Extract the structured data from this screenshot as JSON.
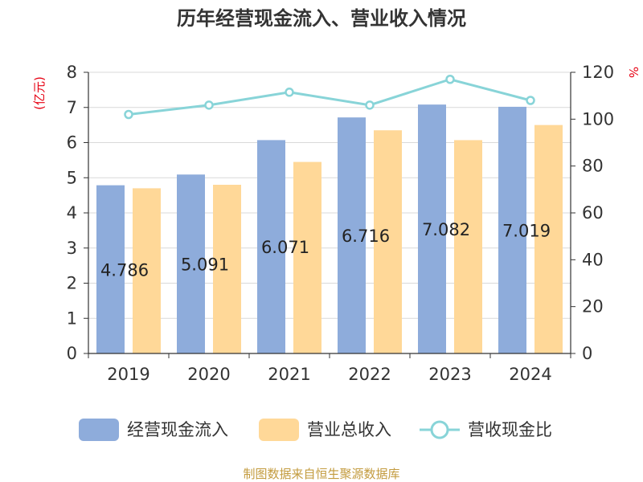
{
  "chart_data": {
    "type": "bar",
    "title": "历年经营现金流入、营业收入情况",
    "categories": [
      "2019",
      "2020",
      "2021",
      "2022",
      "2023",
      "2024"
    ],
    "series": [
      {
        "name": "经营现金流入",
        "kind": "bar",
        "axis": "left",
        "color": "#8eacdb",
        "values": [
          4.786,
          5.091,
          6.071,
          6.716,
          7.082,
          7.019
        ]
      },
      {
        "name": "营业总收入",
        "kind": "bar",
        "axis": "left",
        "color": "#ffd898",
        "values": [
          4.7,
          4.8,
          5.45,
          6.35,
          6.07,
          6.5
        ]
      },
      {
        "name": "营收现金比",
        "kind": "line",
        "axis": "right",
        "color": "#88d4d8",
        "values": [
          102,
          106,
          111.5,
          106,
          117,
          108
        ]
      }
    ],
    "data_labels": [
      "4.786",
      "5.091",
      "6.071",
      "6.716",
      "7.082",
      "7.019"
    ],
    "left_axis": {
      "unit_label": "(亿元)",
      "ylim": [
        0,
        8
      ],
      "ticks": [
        "0",
        "1",
        "2",
        "3",
        "4",
        "5",
        "6",
        "7",
        "8"
      ]
    },
    "right_axis": {
      "unit_label": "%",
      "ylim": [
        0,
        120
      ],
      "ticks": [
        "0",
        "20",
        "40",
        "60",
        "80",
        "100",
        "120"
      ]
    },
    "unit_color": "#e60012",
    "grid": true,
    "legend_position": "bottom"
  },
  "source_text": "制图数据来自恒生聚源数据库",
  "source_color": "#c39b3e"
}
